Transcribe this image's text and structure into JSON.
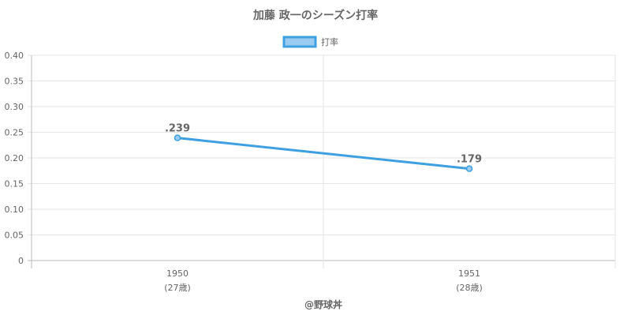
{
  "chart_data": {
    "type": "line",
    "title": "加藤 政一のシーズン打率",
    "legend": {
      "position": "top",
      "label": "打率"
    },
    "categories": [
      "1950",
      "1951"
    ],
    "category_sublabels": [
      "(27歳)",
      "(28歳)"
    ],
    "series": [
      {
        "name": "打率",
        "values": [
          0.239,
          0.179
        ],
        "data_labels": [
          ".239",
          ".179"
        ]
      }
    ],
    "ylim": [
      0,
      0.4
    ],
    "yticks": [
      0,
      0.05,
      0.1,
      0.15,
      0.2,
      0.25,
      0.3,
      0.35,
      0.4
    ],
    "ytick_labels": [
      "0",
      "0.05",
      "0.10",
      "0.15",
      "0.20",
      "0.25",
      "0.30",
      "0.35",
      "0.40"
    ],
    "grid": true,
    "credit": "@野球丼",
    "colors": {
      "line": "#3ea0e0",
      "fill": "#9acbf0",
      "text": "#666666",
      "grid": "#e6e6e6",
      "axis": "#bbbbbb"
    }
  }
}
